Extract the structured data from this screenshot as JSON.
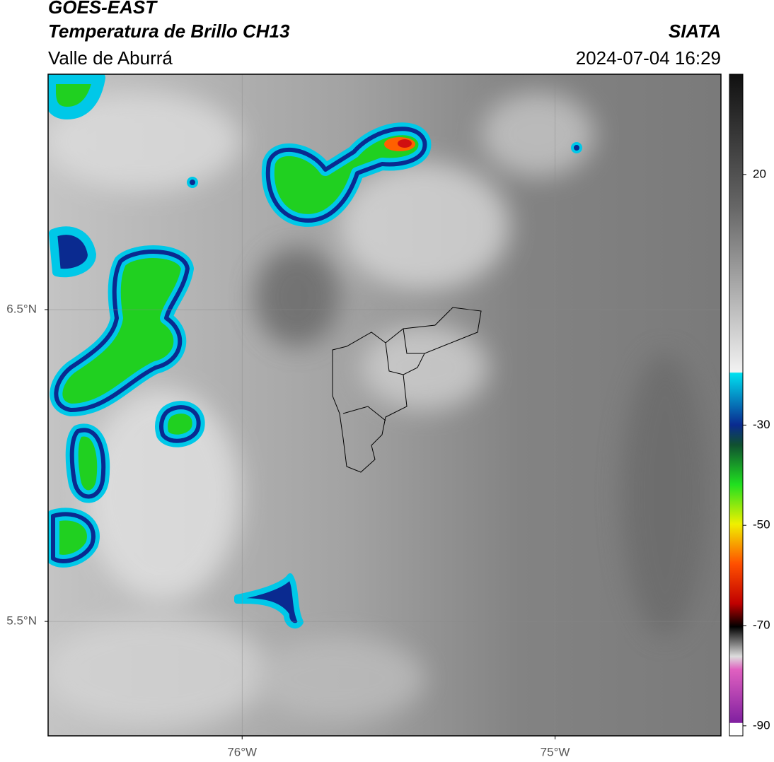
{
  "header": {
    "satellite": "GOES-EAST",
    "product": "Temperatura de Brillo CH13",
    "region": "Valle de Aburrá",
    "source": "SIATA",
    "datetime": "2024-07-04 16:29"
  },
  "map": {
    "lonlim": [
      -76.62,
      -74.47
    ],
    "latlim": [
      5.133,
      7.255
    ],
    "lon_ticks": [
      {
        "value": -76,
        "label": "76°W"
      },
      {
        "value": -75,
        "label": "75°W"
      }
    ],
    "lat_ticks": [
      {
        "value": 6.5,
        "label": "6.5°N"
      },
      {
        "value": 5.5,
        "label": "5.5°N"
      }
    ]
  },
  "colorbar": {
    "lim": [
      -92,
      40
    ],
    "ticks": [
      20,
      -30,
      -50,
      -70,
      -90
    ]
  }
}
